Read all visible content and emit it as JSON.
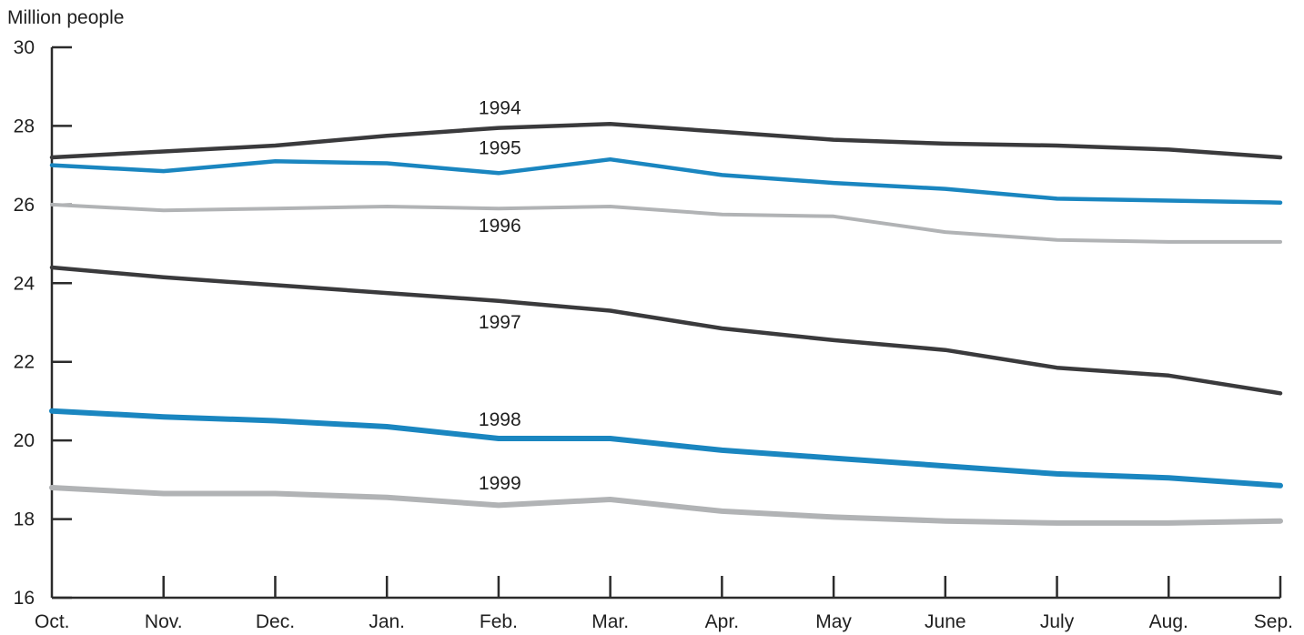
{
  "chart_data": {
    "type": "line",
    "title": "",
    "xlabel": "",
    "ylabel": "Million people",
    "ylim": [
      16,
      30
    ],
    "yticks": [
      16,
      18,
      20,
      22,
      24,
      26,
      28,
      30
    ],
    "grid": false,
    "legend": "none",
    "categories": [
      "Oct.",
      "Nov.",
      "Dec.",
      "Jan.",
      "Feb.",
      "Mar.",
      "Apr.",
      "May",
      "June",
      "July",
      "Aug.",
      "Sep."
    ],
    "series": [
      {
        "name": "1994",
        "color": "#3a3a3c",
        "values": [
          27.2,
          27.35,
          27.5,
          27.75,
          27.95,
          28.05,
          27.85,
          27.65,
          27.55,
          27.5,
          27.4,
          27.2
        ]
      },
      {
        "name": "1995",
        "color": "#1a86c0",
        "values": [
          27.0,
          26.85,
          27.1,
          27.05,
          26.8,
          27.15,
          26.75,
          26.55,
          26.4,
          26.15,
          26.1,
          26.05
        ]
      },
      {
        "name": "1996",
        "color": "#b1b3b5",
        "values": [
          26.0,
          25.85,
          25.9,
          25.95,
          25.9,
          25.95,
          25.75,
          25.7,
          25.3,
          25.1,
          25.05,
          25.05
        ]
      },
      {
        "name": "1997",
        "color": "#3a3a3c",
        "values": [
          24.4,
          24.15,
          23.95,
          23.75,
          23.55,
          23.3,
          22.85,
          22.55,
          22.3,
          21.85,
          21.65,
          21.2
        ]
      },
      {
        "name": "1998",
        "color": "#1a86c0",
        "values": [
          20.75,
          20.6,
          20.5,
          20.35,
          20.05,
          20.05,
          19.75,
          19.55,
          19.35,
          19.15,
          19.05,
          18.85
        ]
      },
      {
        "name": "1999",
        "color": "#b1b3b5",
        "values": [
          18.8,
          18.65,
          18.65,
          18.55,
          18.35,
          18.5,
          18.2,
          18.05,
          17.95,
          17.9,
          17.9,
          17.95
        ]
      }
    ]
  }
}
